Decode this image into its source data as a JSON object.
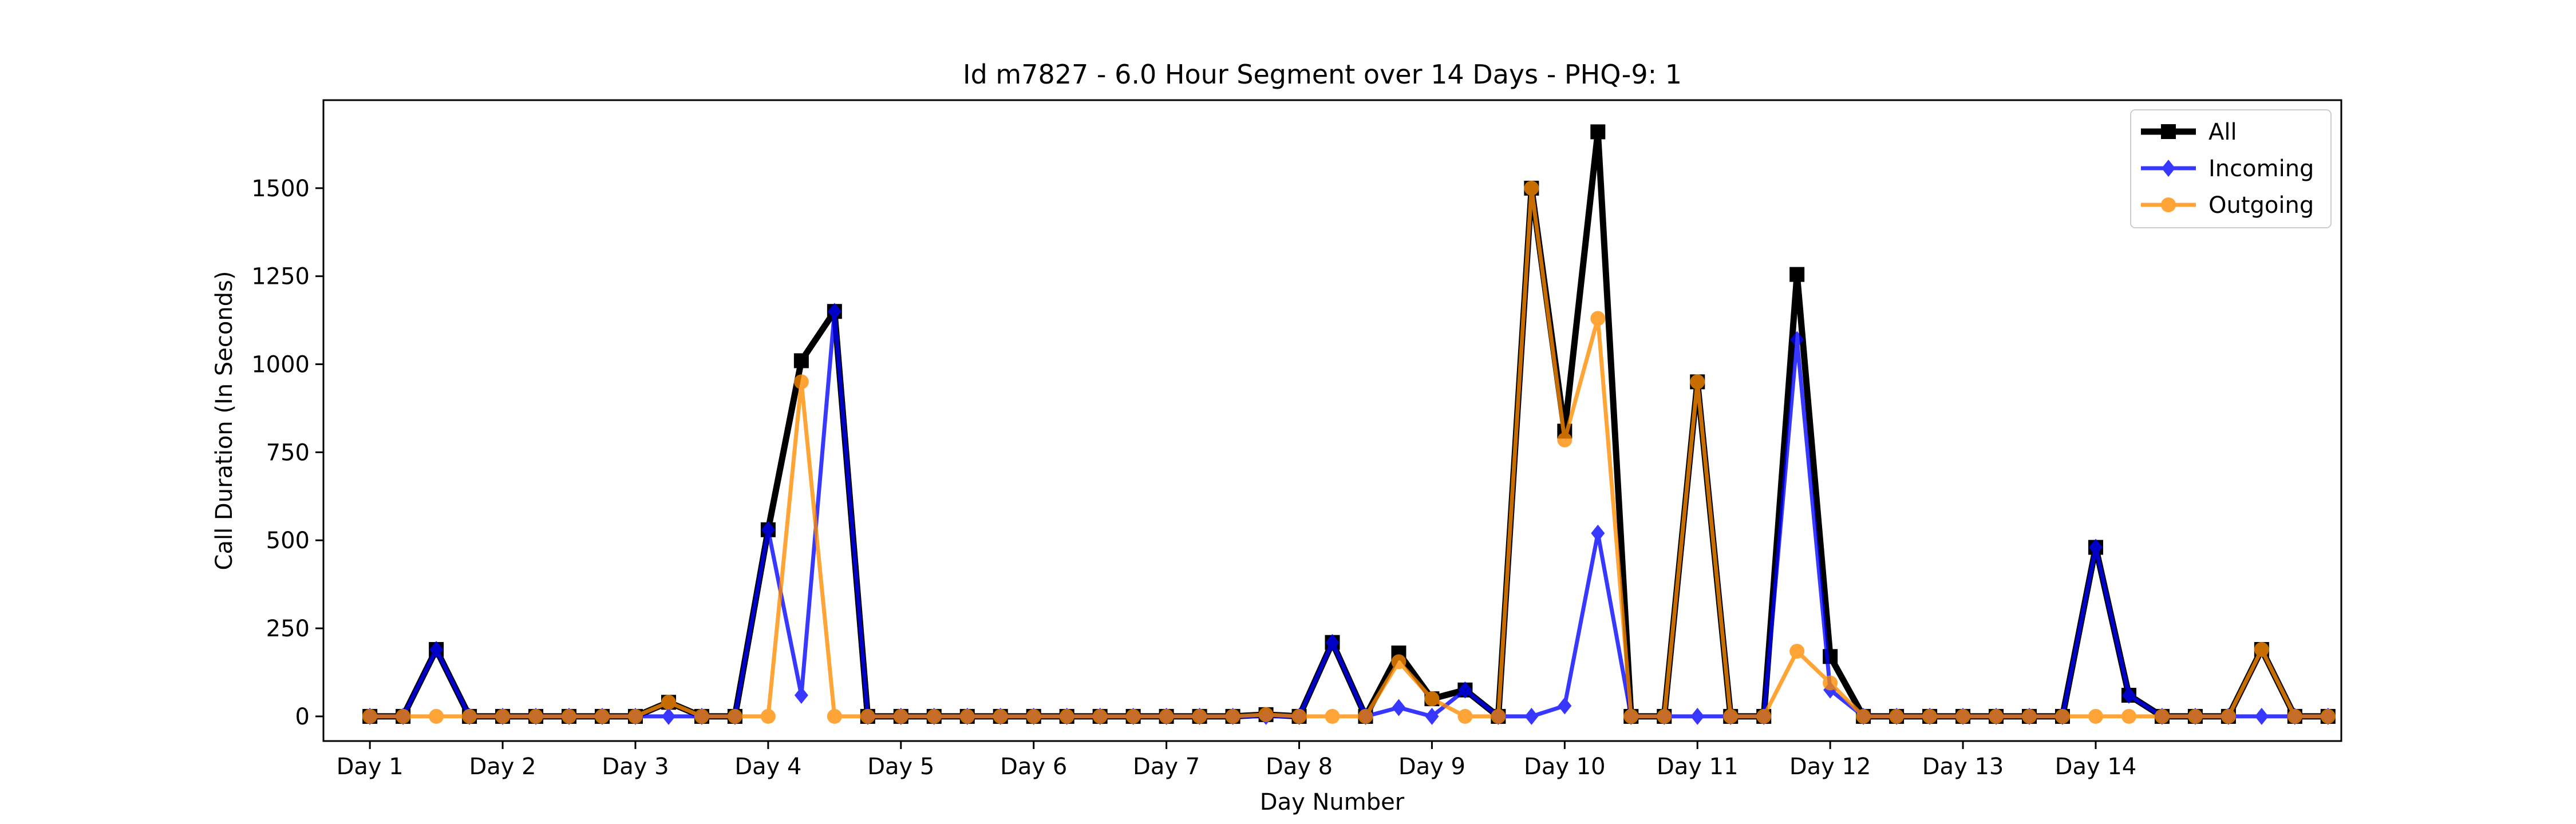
{
  "chart_data": {
    "type": "line",
    "title": "Id m7827 - 6.0 Hour Segment over 14 Days - PHQ-9: 1",
    "xlabel": "Day Number",
    "ylabel": "Call Duration (In Seconds)",
    "ylim": [
      -70,
      1750
    ],
    "yticks": [
      0,
      250,
      500,
      750,
      1000,
      1250,
      1500
    ],
    "xlim": [
      -1.4,
      59.4
    ],
    "xticks": [
      0,
      4,
      8,
      12,
      16,
      20,
      24,
      28,
      32,
      36,
      40,
      44,
      48,
      52
    ],
    "xtick_labels": [
      "Day 1",
      "Day 2",
      "Day 3",
      "Day 4",
      "Day 5",
      "Day 6",
      "Day 7",
      "Day 8",
      "Day 9",
      "Day 10",
      "Day 11",
      "Day 12",
      "Day 13",
      "Day 14"
    ],
    "grid": false,
    "legend": "top-right",
    "series": [
      {
        "name": "All",
        "color": "#000000",
        "marker": "square",
        "values": [
          0,
          0,
          190,
          0,
          0,
          0,
          0,
          0,
          0,
          40,
          0,
          0,
          530,
          1010,
          1150,
          0,
          0,
          0,
          0,
          0,
          0,
          0,
          0,
          0,
          0,
          0,
          0,
          5,
          0,
          210,
          0,
          180,
          50,
          75,
          0,
          1500,
          810,
          1660,
          0,
          0,
          950,
          0,
          0,
          1255,
          170,
          0,
          0,
          0,
          0,
          0,
          0,
          0,
          480,
          60,
          0,
          0,
          0,
          190,
          0,
          0
        ]
      },
      {
        "name": "Incoming",
        "color": "#0000ff",
        "marker": "diamond",
        "values": [
          0,
          0,
          190,
          0,
          0,
          0,
          0,
          0,
          0,
          0,
          0,
          0,
          530,
          60,
          1150,
          0,
          0,
          0,
          0,
          0,
          0,
          0,
          0,
          0,
          0,
          0,
          0,
          0,
          0,
          210,
          0,
          25,
          0,
          75,
          0,
          0,
          30,
          520,
          0,
          0,
          0,
          0,
          0,
          1070,
          75,
          0,
          0,
          0,
          0,
          0,
          0,
          0,
          480,
          60,
          0,
          0,
          0,
          0,
          0,
          0
        ]
      },
      {
        "name": "Outgoing",
        "color": "#ff8c00",
        "marker": "circle",
        "values": [
          0,
          0,
          0,
          0,
          0,
          0,
          0,
          0,
          0,
          40,
          0,
          0,
          0,
          950,
          0,
          0,
          0,
          0,
          0,
          0,
          0,
          0,
          0,
          0,
          0,
          0,
          0,
          5,
          0,
          0,
          0,
          155,
          50,
          0,
          0,
          1500,
          785,
          1130,
          0,
          0,
          950,
          0,
          0,
          185,
          95,
          0,
          0,
          0,
          0,
          0,
          0,
          0,
          0,
          0,
          0,
          0,
          0,
          190,
          0,
          0
        ]
      }
    ]
  }
}
